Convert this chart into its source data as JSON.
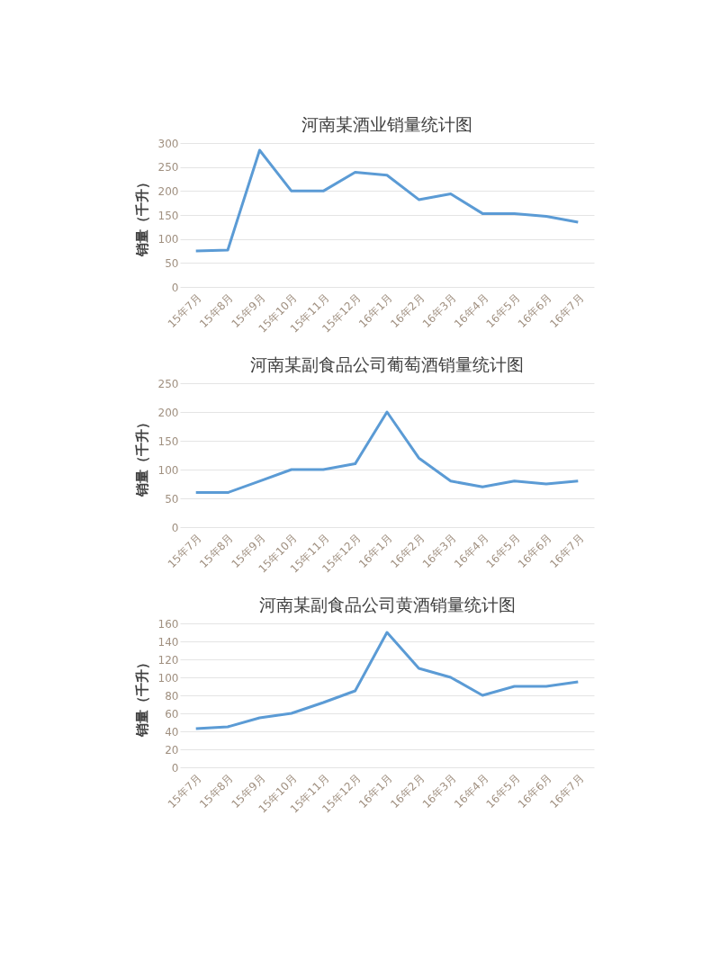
{
  "chart_data": [
    {
      "type": "line",
      "title": "河南某酒业销量统计图",
      "ylabel": "销量（千升）",
      "categories": [
        "15年7月",
        "15年8月",
        "15年9月",
        "15年10月",
        "15年11月",
        "15年12月",
        "16年1月",
        "16年2月",
        "16年3月",
        "16年4月",
        "16年5月",
        "16年6月",
        "16年7月"
      ],
      "series": [
        {
          "color": "#5b9bd5",
          "values": [
            75,
            77,
            285,
            200,
            200,
            239,
            233,
            182,
            194,
            153,
            153,
            147,
            135
          ]
        }
      ],
      "ylim": [
        0,
        300
      ],
      "yticks": [
        0,
        50,
        100,
        150,
        200,
        250,
        300
      ],
      "grid": "y",
      "legend": false
    },
    {
      "type": "line",
      "title": "河南某副食品公司葡萄酒销量统计图",
      "ylabel": "销量（千升）",
      "categories": [
        "15年7月",
        "15年8月",
        "15年9月",
        "15年10月",
        "15年11月",
        "15年12月",
        "16年1月",
        "16年2月",
        "16年3月",
        "16年4月",
        "16年5月",
        "16年6月",
        "16年7月"
      ],
      "series": [
        {
          "color": "#5b9bd5",
          "values": [
            60,
            60,
            80,
            100,
            100,
            110,
            200,
            120,
            80,
            70,
            80,
            75,
            80
          ]
        }
      ],
      "ylim": [
        0,
        250
      ],
      "yticks": [
        0,
        50,
        100,
        150,
        200,
        250
      ],
      "grid": "y",
      "legend": false
    },
    {
      "type": "line",
      "title": "河南某副食品公司黄酒销量统计图",
      "ylabel": "销量（千升）",
      "categories": [
        "15年7月",
        "15年8月",
        "15年9月",
        "15年10月",
        "15年11月",
        "15年12月",
        "16年1月",
        "16年2月",
        "16年3月",
        "16年4月",
        "16年5月",
        "16年6月",
        "16年7月"
      ],
      "series": [
        {
          "color": "#5b9bd5",
          "values": [
            43,
            45,
            55,
            60,
            72,
            85,
            150,
            110,
            100,
            80,
            90,
            90,
            95
          ]
        }
      ],
      "ylim": [
        0,
        160
      ],
      "yticks": [
        0,
        20,
        40,
        60,
        80,
        100,
        120,
        140,
        160
      ],
      "grid": "y",
      "legend": false
    }
  ]
}
